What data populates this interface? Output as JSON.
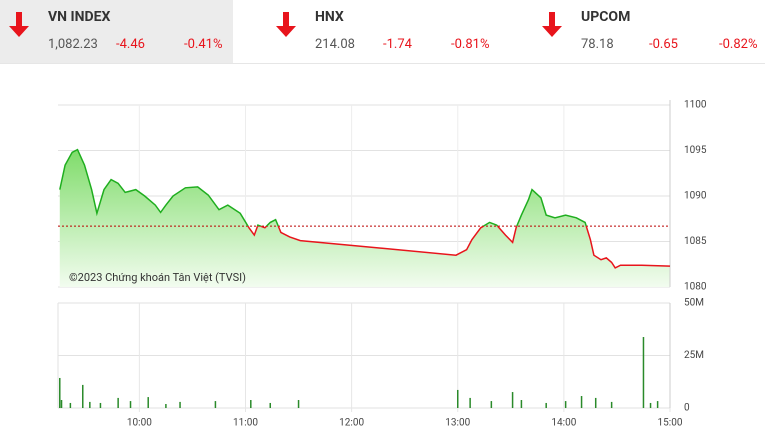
{
  "header": {
    "indices": [
      {
        "name": "VN INDEX",
        "value": "1,082.23",
        "change": "-4.46",
        "percent": "-0.41%"
      },
      {
        "name": "HNX",
        "value": "214.08",
        "change": "-1.74",
        "percent": "-0.81%"
      },
      {
        "name": "UPCOM",
        "value": "78.18",
        "change": "-0.65",
        "percent": "-0.82%"
      }
    ]
  },
  "chart_data": [
    {
      "type": "line",
      "annotation": "©2023 Chứng khoán Tân Việt (TVSI)",
      "x": [
        555,
        558,
        562,
        565,
        569,
        573,
        576,
        580,
        584,
        588,
        592,
        598,
        603,
        609,
        612,
        615,
        619,
        626,
        633,
        639,
        645,
        650,
        657,
        662,
        665,
        667,
        671,
        674,
        677,
        680,
        685,
        691,
        779,
        785,
        788,
        793,
        798,
        802,
        807,
        811,
        813,
        816,
        820,
        822,
        827,
        830,
        835,
        841,
        847,
        852,
        855,
        857,
        861,
        864,
        867,
        869,
        872,
        884,
        900
      ],
      "values": [
        1090.7,
        1093.4,
        1094.8,
        1095.1,
        1093.4,
        1090.7,
        1088.1,
        1090.7,
        1091.8,
        1091.4,
        1090.4,
        1090.7,
        1090.0,
        1089.0,
        1088.2,
        1089.0,
        1090.0,
        1090.9,
        1091.0,
        1090.1,
        1088.5,
        1089.0,
        1088.1,
        1086.5,
        1085.7,
        1086.8,
        1086.5,
        1087.1,
        1087.4,
        1086.0,
        1085.5,
        1085.1,
        1083.5,
        1084.1,
        1085.2,
        1086.5,
        1087.1,
        1086.8,
        1085.7,
        1084.9,
        1086.5,
        1087.9,
        1089.6,
        1090.7,
        1089.8,
        1087.9,
        1087.6,
        1087.9,
        1087.6,
        1087.1,
        1085.2,
        1083.5,
        1083.0,
        1083.2,
        1082.7,
        1082.1,
        1082.4,
        1082.4,
        1082.3
      ],
      "reference": 1086.69,
      "up_color": "#1fae1f",
      "down_color": "#e8141c",
      "xlim": [
        554,
        900
      ],
      "ylim": [
        1080,
        1100
      ],
      "yticks": [
        1080,
        1085,
        1090,
        1095,
        1100
      ],
      "grid": true
    },
    {
      "type": "bar",
      "x": [
        555,
        556,
        561,
        568,
        572,
        578,
        588,
        595,
        605,
        615,
        623,
        643,
        663,
        674,
        690,
        780,
        787,
        799,
        811,
        816,
        830,
        841,
        850,
        858,
        867,
        885,
        889,
        893
      ],
      "values": [
        14300000,
        3800000,
        2400000,
        11000000,
        2900000,
        2400000,
        4800000,
        3300000,
        5200000,
        1900000,
        2900000,
        3300000,
        3800000,
        2400000,
        3800000,
        8600000,
        4800000,
        3300000,
        7600000,
        3800000,
        2400000,
        3300000,
        5700000,
        4800000,
        2900000,
        33800000,
        2400000,
        3300000
      ],
      "color": "#2a8a2a",
      "xlim": [
        554,
        900
      ],
      "ylim": [
        0,
        50000000
      ],
      "yticks": [
        0,
        {
          "value": 25000000,
          "label": "25M"
        },
        {
          "value": 50000000,
          "label": "50M"
        }
      ],
      "xticks": [
        {
          "value": 600,
          "label": "10:00"
        },
        {
          "value": 660,
          "label": "11:00"
        },
        {
          "value": 720,
          "label": "12:00"
        },
        {
          "value": 780,
          "label": "13:00"
        },
        {
          "value": 840,
          "label": "14:00"
        },
        {
          "value": 900,
          "label": "15:00"
        }
      ],
      "grid": true
    }
  ]
}
